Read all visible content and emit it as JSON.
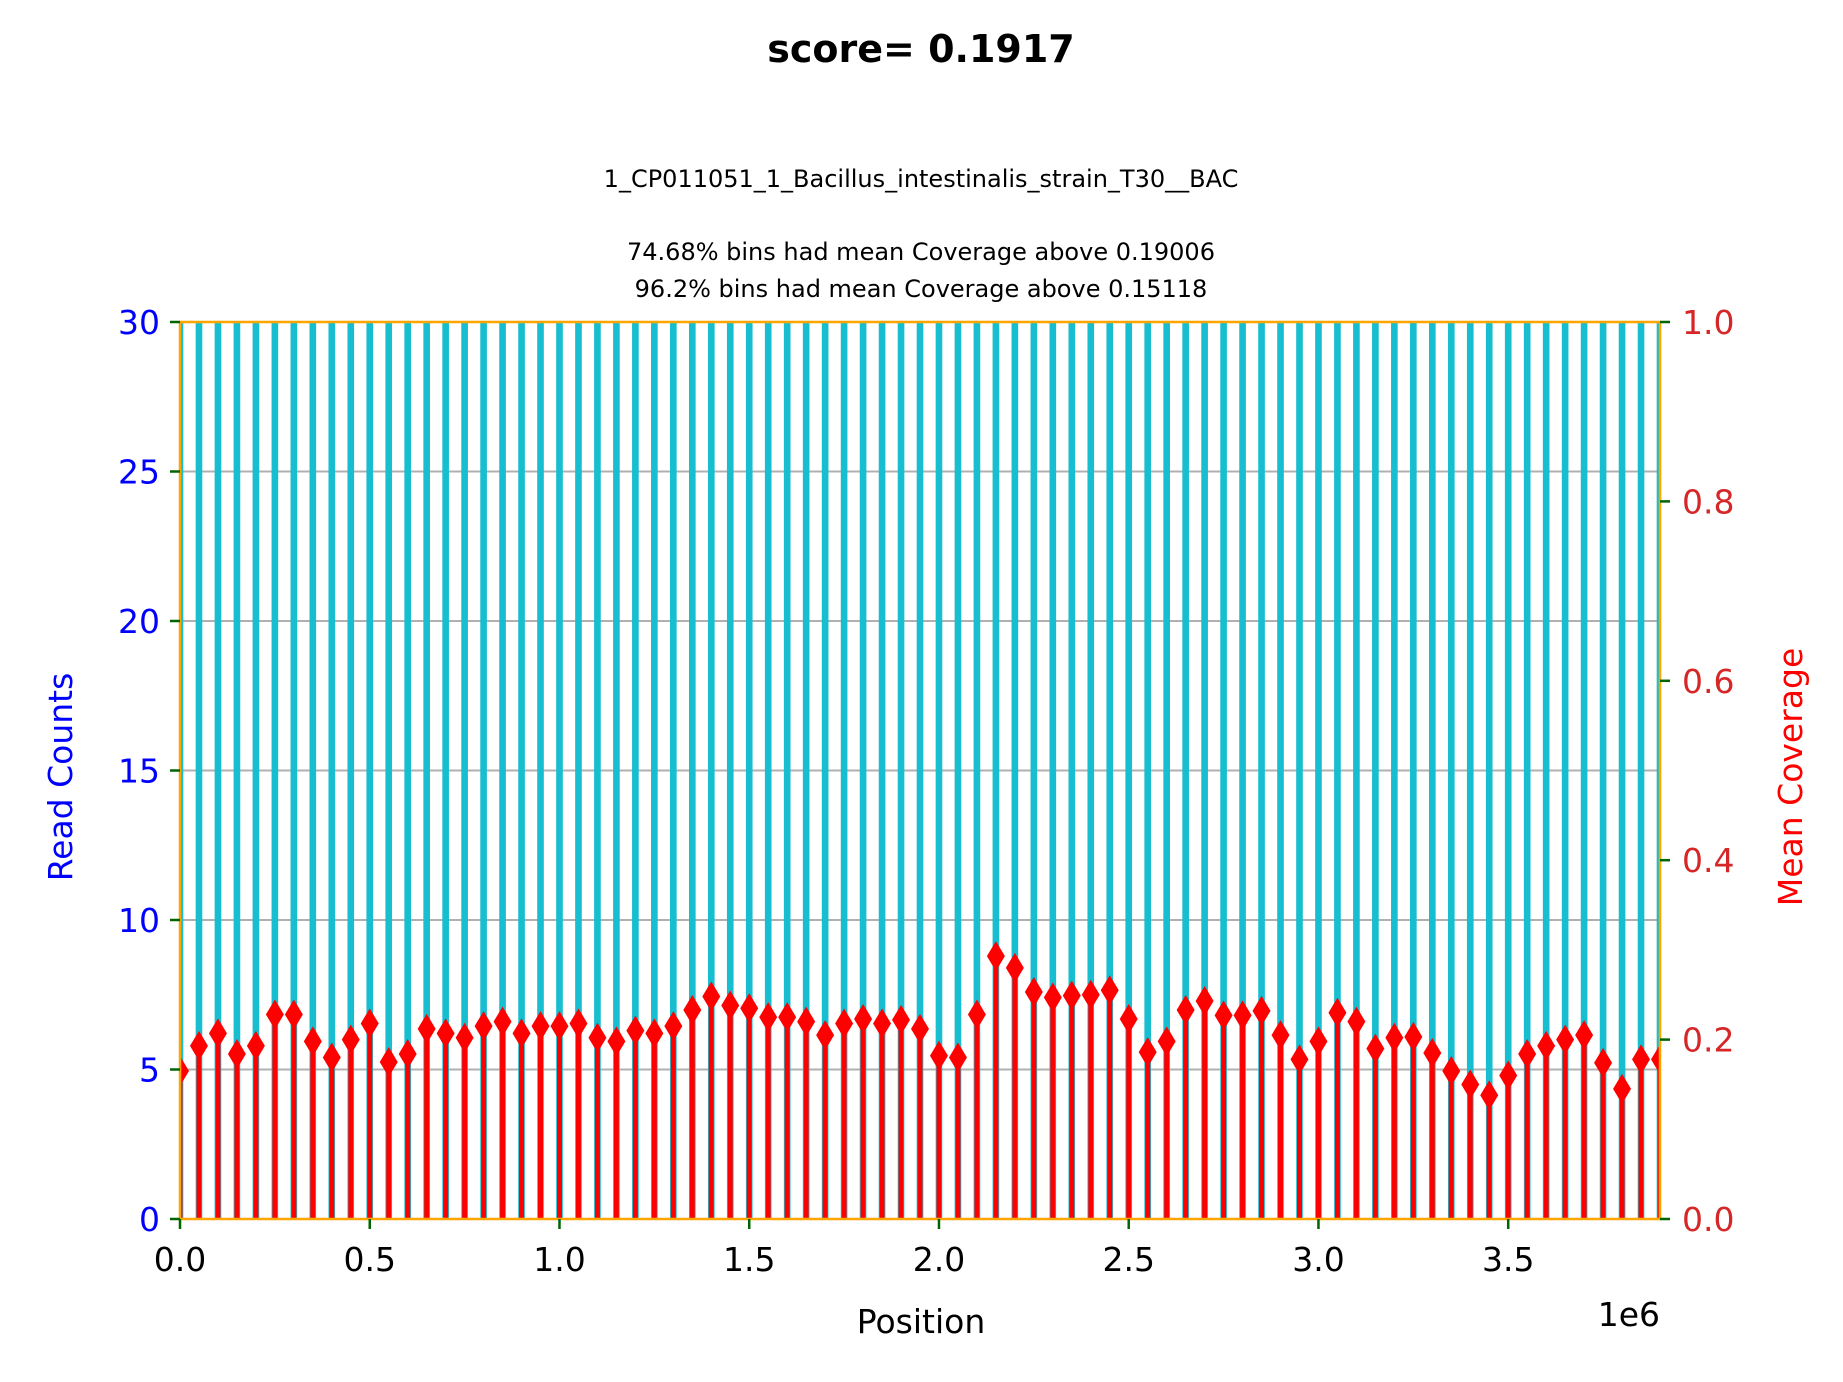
{
  "chart_data": {
    "type": "bar",
    "title": "score= 0.1917",
    "subtitle_lines": [
      "1_CP011051_1_Bacillus_intestinalis_strain_T30__BAC",
      "74.68% bins had mean Coverage above 0.19006",
      "96.2% bins had mean Coverage above 0.15118"
    ],
    "xlabel": "Position",
    "x_offset_label": "1e6",
    "ylabel_left": "Read Counts",
    "ylabel_right": "Mean Coverage",
    "xlim": [
      0,
      3.9
    ],
    "ylim_left": [
      0,
      30
    ],
    "ylim_right": [
      0,
      1.0
    ],
    "x_ticks": [
      0.0,
      0.5,
      1.0,
      1.5,
      2.0,
      2.5,
      3.0,
      3.5
    ],
    "x_tick_labels": [
      "0.0",
      "0.5",
      "1.0",
      "1.5",
      "2.0",
      "2.5",
      "3.0",
      "3.5"
    ],
    "y_left_ticks": [
      0,
      5,
      10,
      15,
      20,
      25,
      30
    ],
    "y_left_tick_labels": [
      "0",
      "5",
      "10",
      "15",
      "20",
      "25",
      "30"
    ],
    "y_right_ticks": [
      0.0,
      0.2,
      0.4,
      0.6,
      0.8,
      1.0
    ],
    "y_right_tick_labels": [
      "0.0",
      "0.2",
      "0.4",
      "0.6",
      "0.8",
      "1.0"
    ],
    "grid": "horizontal",
    "bin_step": 0.05,
    "series": [
      {
        "name": "Read Counts",
        "axis": "left",
        "marker": "bar",
        "color": "#17becf",
        "x": [
          0.0,
          0.05,
          0.1,
          0.15,
          0.2,
          0.25,
          0.3,
          0.35,
          0.4,
          0.45,
          0.5,
          0.55,
          0.6,
          0.65,
          0.7,
          0.75,
          0.8,
          0.85,
          0.9,
          0.95,
          1.0,
          1.05,
          1.1,
          1.15,
          1.2,
          1.25,
          1.3,
          1.35,
          1.4,
          1.45,
          1.5,
          1.55,
          1.6,
          1.65,
          1.7,
          1.75,
          1.8,
          1.85,
          1.9,
          1.95,
          2.0,
          2.05,
          2.1,
          2.15,
          2.2,
          2.25,
          2.3,
          2.35,
          2.4,
          2.45,
          2.5,
          2.55,
          2.6,
          2.65,
          2.7,
          2.75,
          2.8,
          2.85,
          2.9,
          2.95,
          3.0,
          3.05,
          3.1,
          3.15,
          3.2,
          3.25,
          3.3,
          3.35,
          3.4,
          3.45,
          3.5,
          3.55,
          3.6,
          3.65,
          3.7,
          3.75,
          3.8,
          3.85,
          3.9
        ],
        "values": [
          30,
          30,
          30,
          30,
          30,
          30,
          30,
          30,
          30,
          30,
          30,
          30,
          30,
          30,
          30,
          30,
          30,
          30,
          30,
          30,
          30,
          30,
          30,
          30,
          30,
          30,
          30,
          30,
          30,
          30,
          30,
          30,
          30,
          30,
          30,
          30,
          30,
          30,
          30,
          30,
          30,
          30,
          30,
          30,
          30,
          30,
          30,
          30,
          30,
          30,
          30,
          30,
          30,
          30,
          30,
          30,
          30,
          30,
          30,
          30,
          30,
          30,
          30,
          30,
          30,
          30,
          30,
          30,
          30,
          30,
          30,
          30,
          30,
          30,
          30,
          30,
          30,
          30,
          30
        ]
      },
      {
        "name": "Mean Coverage",
        "axis": "right",
        "marker": "stem-diamond",
        "color": "#ff0000",
        "x": [
          0.0,
          0.05,
          0.1,
          0.15,
          0.2,
          0.25,
          0.3,
          0.35,
          0.4,
          0.45,
          0.5,
          0.55,
          0.6,
          0.65,
          0.7,
          0.75,
          0.8,
          0.85,
          0.9,
          0.95,
          1.0,
          1.05,
          1.1,
          1.15,
          1.2,
          1.25,
          1.3,
          1.35,
          1.4,
          1.45,
          1.5,
          1.55,
          1.6,
          1.65,
          1.7,
          1.75,
          1.8,
          1.85,
          1.9,
          1.95,
          2.0,
          2.05,
          2.1,
          2.15,
          2.2,
          2.25,
          2.3,
          2.35,
          2.4,
          2.45,
          2.5,
          2.55,
          2.6,
          2.65,
          2.7,
          2.75,
          2.8,
          2.85,
          2.9,
          2.95,
          3.0,
          3.05,
          3.1,
          3.15,
          3.2,
          3.25,
          3.3,
          3.35,
          3.4,
          3.45,
          3.5,
          3.55,
          3.6,
          3.65,
          3.7,
          3.75,
          3.8,
          3.85,
          3.9
        ],
        "values": [
          0.165,
          0.193,
          0.207,
          0.184,
          0.193,
          0.228,
          0.228,
          0.198,
          0.18,
          0.2,
          0.218,
          0.175,
          0.184,
          0.212,
          0.207,
          0.202,
          0.215,
          0.22,
          0.207,
          0.215,
          0.215,
          0.218,
          0.202,
          0.198,
          0.21,
          0.207,
          0.215,
          0.233,
          0.248,
          0.238,
          0.235,
          0.225,
          0.225,
          0.22,
          0.205,
          0.218,
          0.223,
          0.218,
          0.222,
          0.212,
          0.182,
          0.18,
          0.228,
          0.293,
          0.28,
          0.253,
          0.247,
          0.249,
          0.25,
          0.255,
          0.223,
          0.186,
          0.198,
          0.233,
          0.243,
          0.227,
          0.227,
          0.232,
          0.205,
          0.178,
          0.198,
          0.23,
          0.22,
          0.19,
          0.202,
          0.203,
          0.185,
          0.165,
          0.15,
          0.138,
          0.16,
          0.184,
          0.193,
          0.2,
          0.205,
          0.174,
          0.145,
          0.178,
          0.178
        ]
      }
    ],
    "colors": {
      "spine": "#ffa500",
      "grid": "#b0b0b0",
      "tick_mark": "#006400",
      "left_axis": "#0000ff",
      "right_axis": "#d62728",
      "right_label": "#ff0000"
    }
  }
}
